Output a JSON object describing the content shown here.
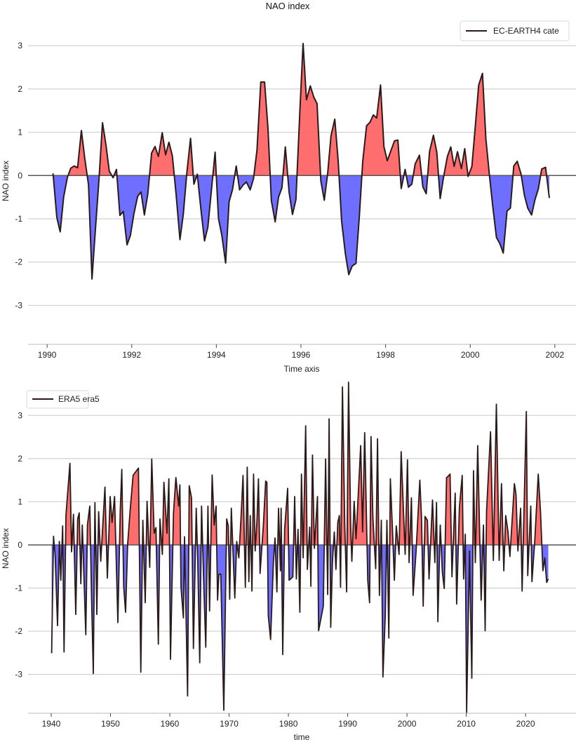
{
  "chart_data": [
    {
      "type": "area",
      "title": "NAO index",
      "xlabel": "Time axis",
      "ylabel": "NAO index",
      "legend": {
        "entries": [
          "EC-EARTH4 cate"
        ],
        "placement": "top-right"
      },
      "grid": "horizontal",
      "xlim": [
        1989.55,
        2002.5
      ],
      "ylim": [
        -3.9,
        3.65
      ],
      "xticks": [
        1990,
        1992,
        1994,
        1996,
        1998,
        2000,
        2002
      ],
      "yticks": [
        -3,
        -2,
        -1,
        0,
        1,
        2,
        3
      ],
      "colors": {
        "positive": "#ff6666",
        "negative": "#6666ff",
        "line": "#2b1a1a",
        "zero_line": "#555555",
        "grid": "#d0d0d0"
      },
      "series": [
        {
          "name": "EC-EARTH4 cate",
          "x": [
            1990.14,
            1990.23,
            1990.31,
            1990.39,
            1990.48,
            1990.56,
            1990.64,
            1990.72,
            1990.81,
            1990.89,
            1990.98,
            1991.06,
            1991.14,
            1991.23,
            1991.31,
            1991.39,
            1991.47,
            1991.56,
            1991.64,
            1991.72,
            1991.8,
            1991.89,
            1991.97,
            1992.05,
            1992.14,
            1992.22,
            1992.3,
            1992.38,
            1992.47,
            1992.55,
            1992.63,
            1992.72,
            1992.8,
            1992.88,
            1992.96,
            1993.05,
            1993.14,
            1993.22,
            1993.3,
            1993.39,
            1993.47,
            1993.55,
            1993.64,
            1993.72,
            1993.8,
            1993.89,
            1993.97,
            1994.05,
            1994.13,
            1994.22,
            1994.3,
            1994.38,
            1994.47,
            1994.55,
            1994.63,
            1994.71,
            1994.8,
            1994.88,
            1994.96,
            1995.05,
            1995.14,
            1995.22,
            1995.3,
            1995.39,
            1995.47,
            1995.55,
            1995.63,
            1995.72,
            1995.8,
            1995.88,
            1995.97,
            1996.05,
            1996.13,
            1996.22,
            1996.3,
            1996.38,
            1996.47,
            1996.55,
            1996.63,
            1996.71,
            1996.8,
            1996.88,
            1996.96,
            1997.05,
            1997.13,
            1997.21,
            1997.3,
            1997.38,
            1997.46,
            1997.55,
            1997.63,
            1997.71,
            1997.79,
            1997.88,
            1997.96,
            1998.04,
            1998.13,
            1998.21,
            1998.29,
            1998.37,
            1998.46,
            1998.54,
            1998.62,
            1998.7,
            1998.8,
            1998.88,
            1998.96,
            1999.04,
            1999.13,
            1999.21,
            1999.29,
            1999.37,
            1999.46,
            1999.54,
            1999.62,
            1999.7,
            1999.79,
            1999.87,
            1999.95,
            2000.04,
            2000.12,
            2000.2,
            2000.29,
            2000.37,
            2000.45,
            2000.53,
            2000.62,
            2000.7,
            2000.78,
            2000.87,
            2000.95,
            2001.03,
            2001.11,
            2001.2,
            2001.28,
            2001.36,
            2001.45,
            2001.53,
            2001.61,
            2001.69,
            2001.78,
            2001.87
          ],
          "y": [
            0.05,
            -0.97,
            -1.3,
            -0.5,
            -0.04,
            0.17,
            0.22,
            0.18,
            1.04,
            0.4,
            -0.22,
            -2.39,
            -1.27,
            -0.04,
            1.22,
            0.71,
            0.1,
            -0.05,
            0.14,
            -0.92,
            -0.83,
            -1.6,
            -1.38,
            -0.89,
            -0.48,
            -0.38,
            -0.91,
            -0.42,
            0.52,
            0.67,
            0.44,
            0.99,
            0.48,
            0.77,
            0.45,
            -0.45,
            -1.48,
            -0.89,
            0.04,
            0.86,
            -0.2,
            0.03,
            -0.83,
            -1.51,
            -1.19,
            -0.28,
            0.54,
            -0.99,
            -1.38,
            -2.02,
            -0.61,
            -0.33,
            0.22,
            -0.33,
            -0.22,
            -0.15,
            -0.33,
            -0.07,
            0.59,
            2.16,
            2.16,
            1.08,
            -0.58,
            -1.07,
            -0.5,
            -0.28,
            0.66,
            -0.39,
            -0.9,
            -0.56,
            1.41,
            3.05,
            1.75,
            2.07,
            1.82,
            1.66,
            -0.12,
            -0.57,
            0.04,
            0.92,
            1.3,
            0.32,
            -1.05,
            -1.81,
            -2.29,
            -2.09,
            -2.03,
            -0.94,
            0.32,
            1.15,
            1.23,
            1.4,
            1.33,
            2.09,
            0.67,
            0.34,
            0.59,
            0.8,
            0.82,
            -0.3,
            0.14,
            -0.27,
            -0.2,
            0.27,
            0.47,
            -0.26,
            -0.42,
            0.56,
            0.93,
            0.54,
            -0.53,
            -0.04,
            0.44,
            0.66,
            0.21,
            0.55,
            0.16,
            0.62,
            -0.02,
            0.21,
            1.14,
            2.09,
            2.36,
            0.86,
            0.04,
            -0.69,
            -1.43,
            -1.57,
            -1.79,
            -0.82,
            -0.75,
            0.22,
            0.33,
            0.04,
            -0.45,
            -0.75,
            -0.91,
            -0.56,
            -0.31,
            0.15,
            0.19,
            -0.52
          ]
        }
      ]
    },
    {
      "type": "area",
      "title": "",
      "xlabel": "time",
      "ylabel": "NAO index",
      "legend": {
        "entries": [
          "ERA5 era5"
        ],
        "placement": "top-left"
      },
      "grid": "horizontal",
      "xlim": [
        1936.1,
        2028.5
      ],
      "ylim": [
        -3.9,
        3.85
      ],
      "xticks": [
        1940,
        1950,
        1960,
        1970,
        1980,
        1990,
        2000,
        2010,
        2020
      ],
      "yticks": [
        -3,
        -2,
        -1,
        0,
        1,
        2,
        3
      ],
      "colors": {
        "positive": "#ff6666",
        "negative": "#6666ff",
        "line": "#2b1a1a",
        "zero_line": "#555555",
        "grid": "#d0d0d0"
      },
      "series": [
        {
          "name": "ERA5 era5",
          "x": [
            1940.08,
            1940.4,
            1940.67,
            1941.07,
            1941.38,
            1941.62,
            1941.93,
            1942.17,
            1942.49,
            1943.16,
            1943.43,
            1943.75,
            1944.14,
            1944.46,
            1944.73,
            1945.0,
            1945.25,
            1945.52,
            1945.84,
            1946.11,
            1946.51,
            1946.79,
            1947.1,
            1947.38,
            1947.69,
            1948.0,
            1948.36,
            1949.07,
            1949.47,
            1949.94,
            1950.26,
            1950.69,
            1951.24,
            1951.64,
            1951.91,
            1952.23,
            1952.54,
            1952.9,
            1953.33,
            1953.81,
            1954.71,
            1955.11,
            1955.46,
            1955.86,
            1956.17,
            1956.61,
            1956.96,
            1957.36,
            1957.67,
            1958.07,
            1958.34,
            1958.74,
            1959.01,
            1959.53,
            1959.84,
            1960.12,
            1960.63,
            1961.03,
            1961.5,
            1961.7,
            1961.89,
            1962.29,
            1962.48,
            1963.0,
            1963.27,
            1963.67,
            1963.98,
            1964.46,
            1964.73,
            1965.05,
            1965.36,
            1965.72,
            1966.07,
            1966.43,
            1966.71,
            1967.14,
            1967.49,
            1967.81,
            1968.05,
            1968.28,
            1968.6,
            1969.11,
            1969.59,
            1969.86,
            1970.1,
            1970.37,
            1970.97,
            1971.28,
            1971.64,
            1972.03,
            1972.35,
            1972.74,
            1973.06,
            1973.33,
            1973.57,
            1973.85,
            1974.12,
            1974.4,
            1974.71,
            1974.95,
            1975.23,
            1975.78,
            1976.17,
            1976.37,
            1976.61,
            1977.0,
            1977.47,
            1977.75,
            1978.07,
            1978.34,
            1978.66,
            1978.78,
            1979.05,
            1979.37,
            1979.88,
            1980.12,
            1980.75,
            1981.06,
            1981.34,
            1981.62,
            1981.93,
            1982.21,
            1982.49,
            1982.92,
            1983.2,
            1983.59,
            1983.79,
            1984.06,
            1984.38,
            1984.9,
            1985.09,
            1985.88,
            1986.28,
            1986.63,
            1986.87,
            1987.14,
            1987.42,
            1987.74,
            1988.01,
            1988.33,
            1988.6,
            1988.8,
            1989.12,
            1989.51,
            1989.83,
            1990.14,
            1990.5,
            1990.7,
            1991.09,
            1991.41,
            1992.19,
            1992.51,
            1992.86,
            1993.38,
            1993.69,
            1993.93,
            1994.25,
            1994.72,
            1995.03,
            1995.35,
            1995.67,
            1995.94,
            1996.34,
            1996.61,
            1996.93,
            1997.2,
            1997.6,
            1997.87,
            1998.19,
            1998.66,
            1999.02,
            1999.69,
            2000.08,
            2000.36,
            2000.75,
            2001.03,
            2001.54,
            2002.17,
            2002.45,
            2002.73,
            2003.04,
            2003.44,
            2003.71,
            2004.3,
            2004.7,
            2004.98,
            2005.21,
            2005.61,
            2005.96,
            2006.28,
            2006.67,
            2006.87,
            2007.26,
            2007.58,
            2008.13,
            2008.37,
            2008.84,
            2009.31,
            2009.55,
            2009.83,
            2010.06,
            2010.54,
            2010.93,
            2011.21,
            2011.52,
            2011.92,
            2012.51,
            2012.9,
            2013.18,
            2013.42,
            2014.09,
            2014.56,
            2015.07,
            2015.55,
            2015.94,
            2016.33,
            2016.65,
            2017.04,
            2017.36,
            2018.11,
            2018.39,
            2018.7,
            2019.17,
            2019.41,
            2020.12,
            2020.36,
            2020.87,
            2021.07,
            2021.54,
            2022.13,
            2022.53,
            2022.92,
            2023.24,
            2023.55,
            2023.83
          ],
          "y": [
            -2.51,
            0.2,
            -0.25,
            -1.87,
            0.08,
            -0.82,
            0.44,
            -2.48,
            0.68,
            1.89,
            -0.16,
            0.71,
            -1.61,
            0.6,
            0.74,
            -0.9,
            0.46,
            -0.71,
            -2.08,
            0.46,
            0.9,
            -1.15,
            -2.98,
            0.98,
            -1.61,
            0.77,
            -0.38,
            1.34,
            -0.77,
            1.12,
            0.52,
            1.12,
            -1.8,
            0.79,
            1.75,
            -0.96,
            -1.56,
            0.03,
            0.82,
            1.61,
            1.78,
            -2.95,
            0.57,
            -1.34,
            1.01,
            -0.52,
            1.99,
            0.27,
            0.4,
            -2.3,
            0.6,
            -0.22,
            1.45,
            0.27,
            1.53,
            -2.65,
            0.74,
            1.56,
            0.9,
            1.39,
            -0.98,
            -1.69,
            0.19,
            -3.5,
            1.37,
            1.09,
            -2.4,
            0.85,
            -0.46,
            -2.73,
            0.9,
            -0.9,
            -2.37,
            0.9,
            -1.53,
            1.62,
            0.46,
            0.9,
            -1.28,
            -0.68,
            -0.68,
            -3.83,
            0.6,
            0.44,
            -1.26,
            0.85,
            -1.23,
            0.08,
            -0.3,
            0.68,
            1.61,
            -0.98,
            1.8,
            -0.85,
            0.68,
            -1.07,
            1.64,
            -0.14,
            0.57,
            1.53,
            -0.66,
            0.46,
            1.48,
            1.45,
            -1.64,
            -2.19,
            -0.41,
            0.16,
            -1.09,
            0.85,
            -0.6,
            0.85,
            -2.54,
            0.36,
            1.31,
            -0.82,
            -0.74,
            1.12,
            -0.79,
            0.36,
            -1.56,
            1.64,
            -0.3,
            2.76,
            -0.57,
            0.41,
            -0.96,
            2.08,
            -0.08,
            1.12,
            -1.99,
            -1.42,
            1.99,
            -1.15,
            2.92,
            -1.91,
            -0.41,
            0.3,
            -0.57,
            0.52,
            0.68,
            -0.98,
            3.66,
            0.46,
            -1.09,
            3.77,
            0.46,
            -0.38,
            1.01,
            0.14,
            2.3,
            0.3,
            2.6,
            -0.82,
            -1.34,
            2.51,
            0.63,
            -0.55,
            2.46,
            -1.17,
            0.57,
            -3.06,
            -1.61,
            0.57,
            -2.16,
            1.53,
            0.19,
            -0.82,
            0.44,
            -0.22,
            2.16,
            -0.22,
            1.97,
            -0.41,
            1.09,
            -1.17,
            -0.14,
            1.5,
            0.63,
            -1.42,
            0.66,
            0.57,
            -0.79,
            1.04,
            -0.41,
            0.98,
            -1.78,
            0.46,
            -0.63,
            -1.01,
            1.56,
            1.58,
            1.64,
            -0.74,
            1.2,
            -1.37,
            0.87,
            1.61,
            -0.79,
            0.25,
            -3.88,
            -0.14,
            -3.09,
            1.72,
            -0.41,
            2.3,
            -1.28,
            0.46,
            -1.99,
            0.77,
            2.62,
            -0.36,
            3.26,
            -0.36,
            1.42,
            -0.6,
            0.68,
            0.3,
            -0.27,
            1.42,
            1.17,
            -0.14,
            0.85,
            -1.07,
            3.09,
            -0.71,
            0.9,
            -0.85,
            0.08,
            1.64,
            0.74,
            -0.6,
            -0.3,
            -0.87,
            -0.79
          ]
        }
      ]
    }
  ]
}
